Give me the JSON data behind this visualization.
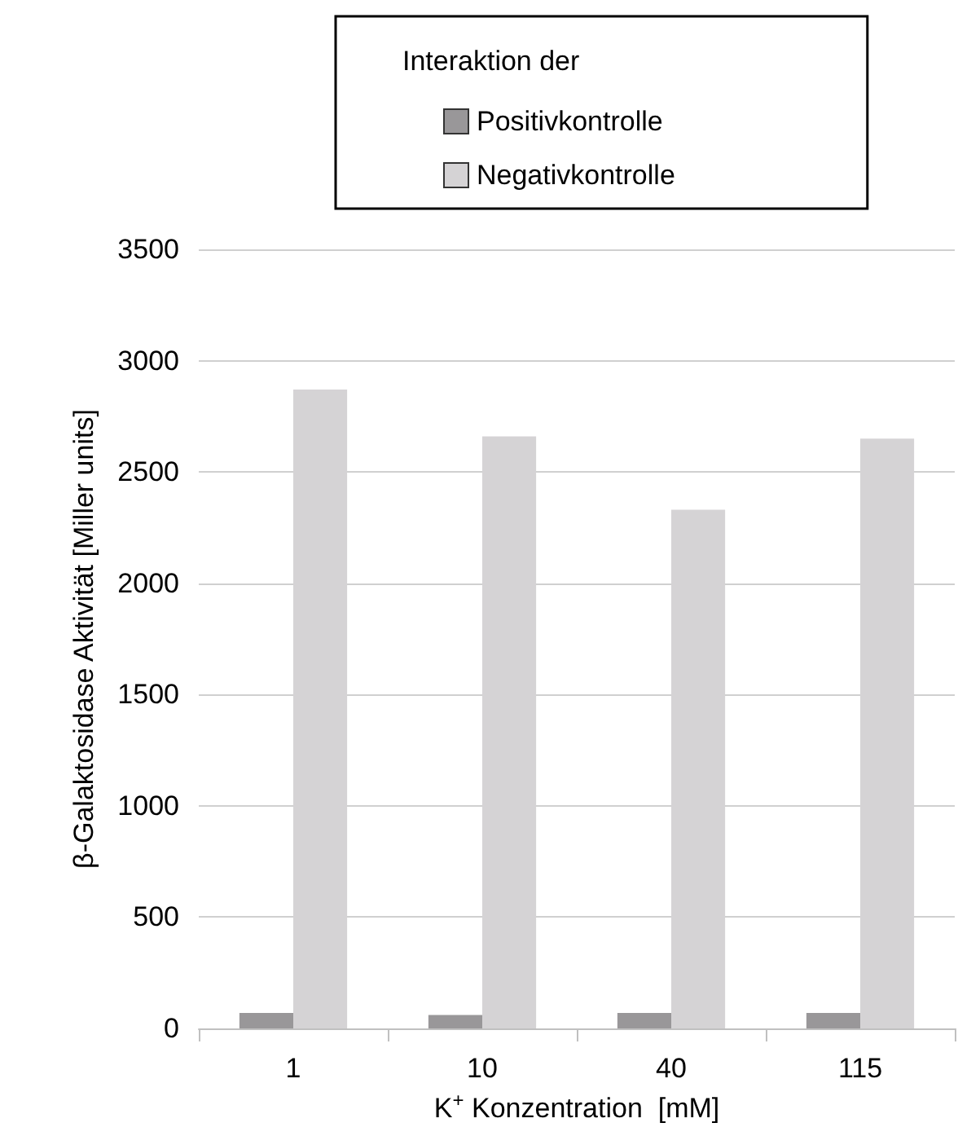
{
  "chart_data": {
    "type": "bar",
    "categories": [
      "1",
      "10",
      "40",
      "115"
    ],
    "series": [
      {
        "name": "Positivkontrolle",
        "color": "#999799",
        "values": [
          70,
          60,
          70,
          70
        ]
      },
      {
        "name": "Negativkontrolle",
        "color": "#d5d3d5",
        "values": [
          2870,
          2660,
          2330,
          2650
        ]
      }
    ],
    "legend_title": "Interaktion der",
    "legend": "top",
    "xlabel": "K$^{+}$ Konzentration  [mM]",
    "ylabel": "β-Galaktosidase Aktivität [Miller units]",
    "ylim": [
      0,
      3500
    ],
    "yticks": [
      0,
      500,
      1000,
      1500,
      2000,
      2500,
      3000,
      3500
    ],
    "grid": "y"
  }
}
